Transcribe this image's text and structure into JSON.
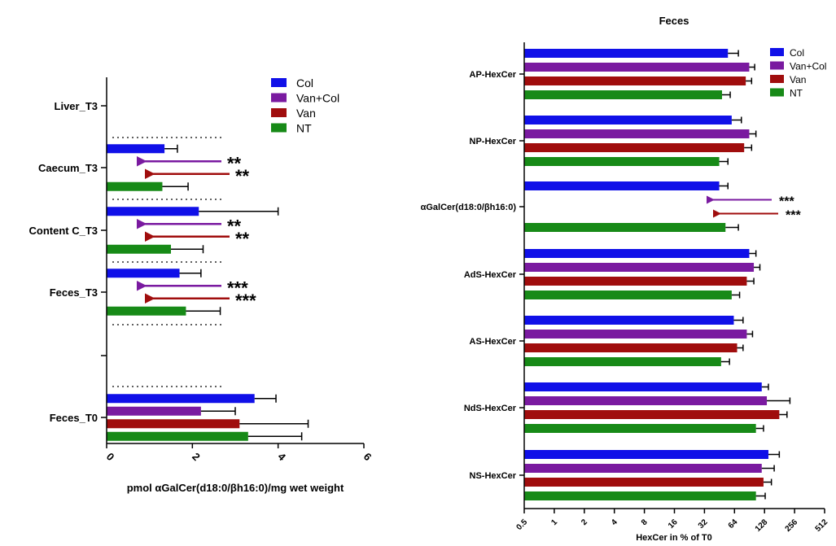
{
  "colors": {
    "Col": "#1010e8",
    "Van+Col": "#7a1aa0",
    "Van": "#a00d0d",
    "NT": "#178a17",
    "axis": "#000000"
  },
  "chart_data": [
    {
      "type": "bar",
      "orientation": "horizontal",
      "title": "",
      "xlabel": "pmol αGalCer(d18:0/βh16:0)/mg wet weight",
      "xlim": [
        0,
        6
      ],
      "xticks": [
        "0",
        "2",
        "4",
        "6"
      ],
      "legend": {
        "position": "top-right",
        "entries": [
          "Col",
          "Van+Col",
          "Van",
          "NT"
        ]
      },
      "groups": [
        {
          "label": "Liver_T3",
          "bars": []
        },
        {
          "label": "Caecum_T3",
          "bars": [
            {
              "series": "Col",
              "value": 1.35,
              "error": 0.3
            },
            {
              "series": "Van+Col",
              "value": null,
              "annotation": "**"
            },
            {
              "series": "Van",
              "value": null,
              "annotation": "**"
            },
            {
              "series": "NT",
              "value": 1.3,
              "error": 0.6
            }
          ]
        },
        {
          "label": "Content C_T3",
          "bars": [
            {
              "series": "Col",
              "value": 2.15,
              "error": 1.85
            },
            {
              "series": "Van+Col",
              "value": null,
              "annotation": "**"
            },
            {
              "series": "Van",
              "value": null,
              "annotation": "**"
            },
            {
              "series": "NT",
              "value": 1.5,
              "error": 0.75
            }
          ]
        },
        {
          "label": "Feces_T3",
          "bars": [
            {
              "series": "Col",
              "value": 1.7,
              "error": 0.5
            },
            {
              "series": "Van+Col",
              "value": null,
              "annotation": "***"
            },
            {
              "series": "Van",
              "value": null,
              "annotation": "***"
            },
            {
              "series": "NT",
              "value": 1.85,
              "error": 0.8
            }
          ]
        },
        {
          "label": "Feces_T0",
          "bars": [
            {
              "series": "Col",
              "value": 3.45,
              "error": 0.5
            },
            {
              "series": "Van+Col",
              "value": 2.2,
              "error": 0.8
            },
            {
              "series": "Van",
              "value": 3.1,
              "error": 1.6
            },
            {
              "series": "NT",
              "value": 3.3,
              "error": 1.25
            }
          ]
        }
      ]
    },
    {
      "type": "bar",
      "orientation": "horizontal",
      "scale": "log2",
      "title": "Feces",
      "xlabel": "HexCer in % of T0",
      "xlim": [
        0.5,
        512
      ],
      "xticks": [
        "0.5",
        "1",
        "2",
        "4",
        "8",
        "16",
        "32",
        "64",
        "128",
        "256",
        "512"
      ],
      "legend": {
        "position": "top-right",
        "entries": [
          "Col",
          "Van+Col",
          "Van",
          "NT"
        ]
      },
      "groups": [
        {
          "label": "AP-HexCer",
          "bars": [
            {
              "series": "Col",
              "value": 55,
              "error": 15
            },
            {
              "series": "Van+Col",
              "value": 90,
              "error": 12
            },
            {
              "series": "Van",
              "value": 83,
              "error": 12
            },
            {
              "series": "NT",
              "value": 48,
              "error": 10
            }
          ]
        },
        {
          "label": "NP-HexCer",
          "bars": [
            {
              "series": "Col",
              "value": 60,
              "error": 15
            },
            {
              "series": "Van+Col",
              "value": 90,
              "error": 15
            },
            {
              "series": "Van",
              "value": 80,
              "error": 15
            },
            {
              "series": "NT",
              "value": 45,
              "error": 10
            }
          ]
        },
        {
          "label": "αGalCer(d18:0/βh16:0)",
          "bars": [
            {
              "series": "Col",
              "value": 45,
              "error": 10
            },
            {
              "series": "Van+Col",
              "value": null,
              "annotation": "***"
            },
            {
              "series": "Van",
              "value": null,
              "annotation": "***"
            },
            {
              "series": "NT",
              "value": 52,
              "error": 18
            }
          ]
        },
        {
          "label": "AdS-HexCer",
          "bars": [
            {
              "series": "Col",
              "value": 90,
              "error": 15
            },
            {
              "series": "Van+Col",
              "value": 100,
              "error": 15
            },
            {
              "series": "Van",
              "value": 85,
              "error": 15
            },
            {
              "series": "NT",
              "value": 60,
              "error": 12
            }
          ]
        },
        {
          "label": "AS-HexCer",
          "bars": [
            {
              "series": "Col",
              "value": 63,
              "error": 15
            },
            {
              "series": "Van+Col",
              "value": 85,
              "error": 12
            },
            {
              "series": "Van",
              "value": 68,
              "error": 10
            },
            {
              "series": "NT",
              "value": 47,
              "error": 10
            }
          ]
        },
        {
          "label": "NdS-HexCer",
          "bars": [
            {
              "series": "Col",
              "value": 120,
              "error": 20
            },
            {
              "series": "Van+Col",
              "value": 135,
              "error": 95
            },
            {
              "series": "Van",
              "value": 180,
              "error": 35
            },
            {
              "series": "NT",
              "value": 105,
              "error": 20
            }
          ]
        },
        {
          "label": "NS-HexCer",
          "bars": [
            {
              "series": "Col",
              "value": 140,
              "error": 40
            },
            {
              "series": "Van+Col",
              "value": 120,
              "error": 40
            },
            {
              "series": "Van",
              "value": 125,
              "error": 25
            },
            {
              "series": "NT",
              "value": 105,
              "error": 25
            }
          ]
        }
      ]
    }
  ]
}
